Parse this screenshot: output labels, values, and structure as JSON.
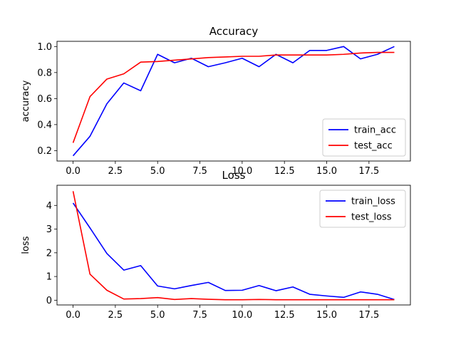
{
  "chart_data": [
    {
      "type": "line",
      "title": "Accuracy",
      "xlabel": "",
      "ylabel": "accuracy",
      "xlim": [
        -0.95,
        19.95
      ],
      "ylim": [
        0.12,
        1.04
      ],
      "xticks": [
        0,
        2.5,
        5,
        7.5,
        10,
        12.5,
        15,
        17.5
      ],
      "xtick_labels": [
        "0.0",
        "2.5",
        "5.0",
        "7.5",
        "10.0",
        "12.5",
        "15.0",
        "17.5"
      ],
      "yticks": [
        0.2,
        0.4,
        0.6,
        0.8,
        1.0
      ],
      "ytick_labels": [
        "0.2",
        "0.4",
        "0.6",
        "0.8",
        "1.0"
      ],
      "legend_position": "lower right",
      "x": [
        0,
        1,
        2,
        3,
        4,
        5,
        6,
        7,
        8,
        9,
        10,
        11,
        12,
        13,
        14,
        15,
        16,
        17,
        18,
        19
      ],
      "series": [
        {
          "name": "train_acc",
          "color": "#0000ff",
          "values": [
            0.16,
            0.31,
            0.56,
            0.72,
            0.66,
            0.94,
            0.875,
            0.91,
            0.845,
            0.875,
            0.91,
            0.845,
            0.94,
            0.875,
            0.97,
            0.97,
            1.0,
            0.905,
            0.94,
            1.0
          ]
        },
        {
          "name": "test_acc",
          "color": "#ff0000",
          "values": [
            0.26,
            0.615,
            0.75,
            0.79,
            0.88,
            0.885,
            0.895,
            0.905,
            0.915,
            0.92,
            0.925,
            0.925,
            0.935,
            0.935,
            0.935,
            0.935,
            0.94,
            0.95,
            0.955,
            0.955
          ]
        }
      ]
    },
    {
      "type": "line",
      "title": "Loss",
      "xlabel": "",
      "ylabel": "loss",
      "xlim": [
        -0.95,
        19.95
      ],
      "ylim": [
        -0.2,
        4.85
      ],
      "xticks": [
        0,
        2.5,
        5,
        7.5,
        10,
        12.5,
        15,
        17.5
      ],
      "xtick_labels": [
        "0.0",
        "2.5",
        "5.0",
        "7.5",
        "10.0",
        "12.5",
        "15.0",
        "17.5"
      ],
      "yticks": [
        0,
        1,
        2,
        3,
        4
      ],
      "ytick_labels": [
        "0",
        "1",
        "2",
        "3",
        "4"
      ],
      "legend_position": "upper right",
      "x": [
        0,
        1,
        2,
        3,
        4,
        5,
        6,
        7,
        8,
        9,
        10,
        11,
        12,
        13,
        14,
        15,
        16,
        17,
        18,
        19
      ],
      "series": [
        {
          "name": "train_loss",
          "color": "#0000ff",
          "values": [
            4.1,
            3.05,
            1.97,
            1.27,
            1.46,
            0.6,
            0.48,
            0.62,
            0.75,
            0.41,
            0.42,
            0.62,
            0.4,
            0.56,
            0.25,
            0.18,
            0.12,
            0.35,
            0.25,
            0.03
          ]
        },
        {
          "name": "test_loss",
          "color": "#ff0000",
          "values": [
            4.6,
            1.1,
            0.42,
            0.05,
            0.07,
            0.11,
            0.03,
            0.07,
            0.04,
            0.02,
            0.02,
            0.03,
            0.02,
            0.02,
            0.02,
            0.02,
            0.02,
            0.02,
            0.02,
            0.02
          ]
        }
      ]
    }
  ]
}
